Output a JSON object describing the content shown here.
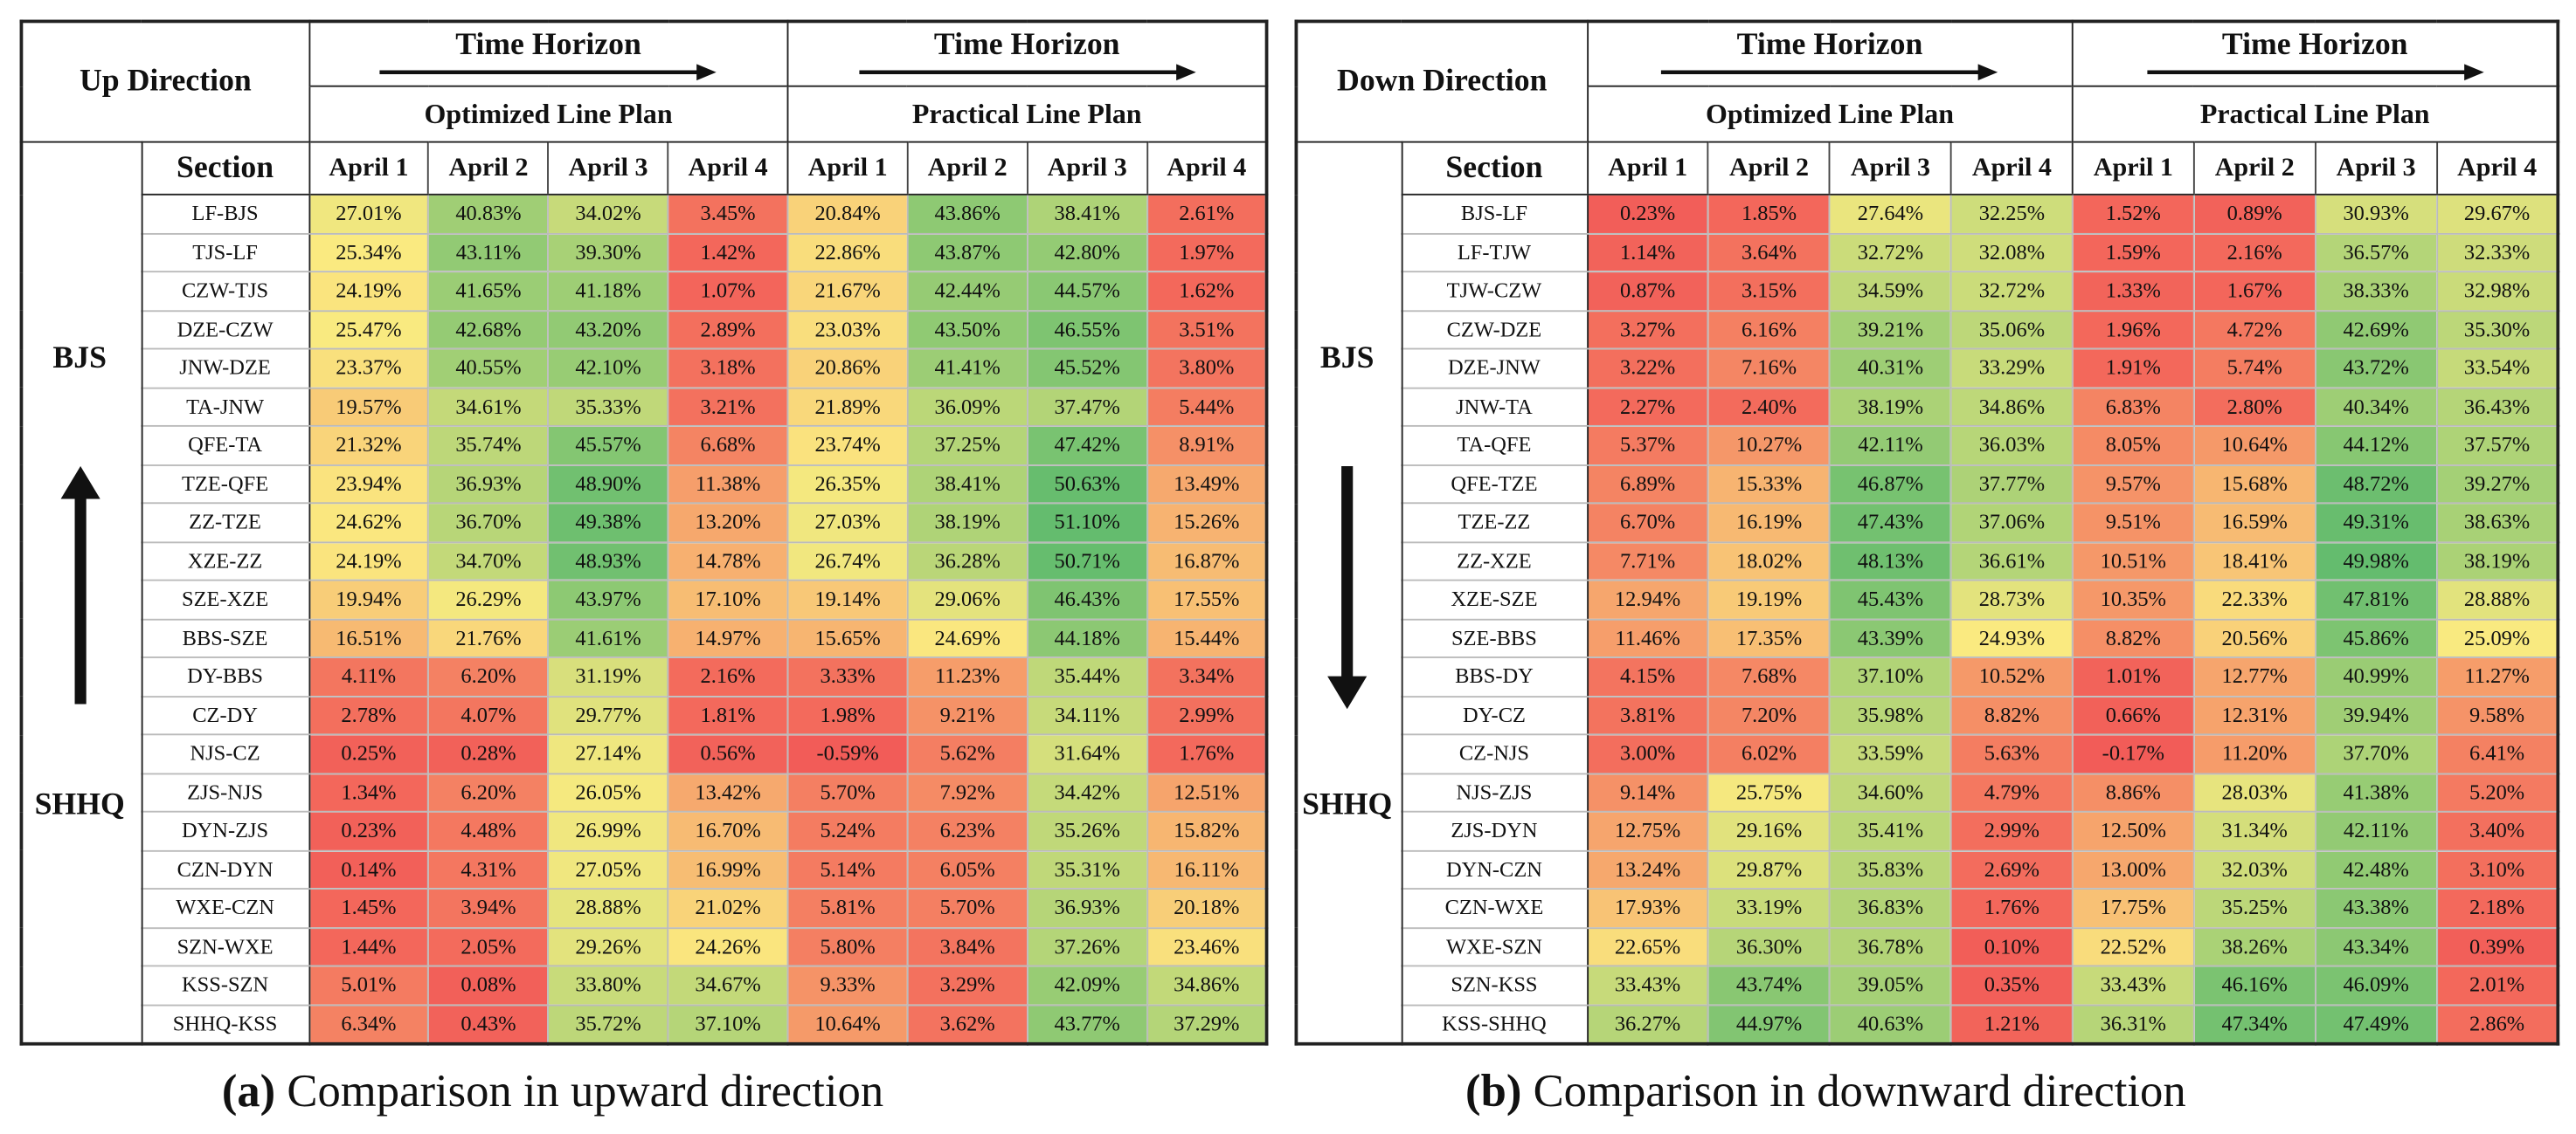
{
  "panels": [
    {
      "direction": "Up Direction",
      "time_horizon": "Time Horizon",
      "plans": [
        "Optimized Line Plan",
        "Practical Line Plan"
      ],
      "section_label": "Section",
      "dates": [
        "April 1",
        "April 2",
        "April 3",
        "April 4"
      ],
      "origin": "BJS",
      "destination": "SHHQ",
      "rows": [
        {
          "section": "LF-BJS",
          "values": [
            "27.01%",
            "40.83%",
            "34.02%",
            "3.45%",
            "20.84%",
            "43.86%",
            "38.41%",
            "2.61%"
          ]
        },
        {
          "section": "TJS-LF",
          "values": [
            "25.34%",
            "43.11%",
            "39.30%",
            "1.42%",
            "22.86%",
            "43.87%",
            "42.80%",
            "1.97%"
          ]
        },
        {
          "section": "CZW-TJS",
          "values": [
            "24.19%",
            "41.65%",
            "41.18%",
            "1.07%",
            "21.67%",
            "42.44%",
            "44.57%",
            "1.62%"
          ]
        },
        {
          "section": "DZE-CZW",
          "values": [
            "25.47%",
            "42.68%",
            "43.20%",
            "2.89%",
            "23.03%",
            "43.50%",
            "46.55%",
            "3.51%"
          ]
        },
        {
          "section": "JNW-DZE",
          "values": [
            "23.37%",
            "40.55%",
            "42.10%",
            "3.18%",
            "20.86%",
            "41.41%",
            "45.52%",
            "3.80%"
          ]
        },
        {
          "section": "TA-JNW",
          "values": [
            "19.57%",
            "34.61%",
            "35.33%",
            "3.21%",
            "21.89%",
            "36.09%",
            "37.47%",
            "5.44%"
          ]
        },
        {
          "section": "QFE-TA",
          "values": [
            "21.32%",
            "35.74%",
            "45.57%",
            "6.68%",
            "23.74%",
            "37.25%",
            "47.42%",
            "8.91%"
          ]
        },
        {
          "section": "TZE-QFE",
          "values": [
            "23.94%",
            "36.93%",
            "48.90%",
            "11.38%",
            "26.35%",
            "38.41%",
            "50.63%",
            "13.49%"
          ]
        },
        {
          "section": "ZZ-TZE",
          "values": [
            "24.62%",
            "36.70%",
            "49.38%",
            "13.20%",
            "27.03%",
            "38.19%",
            "51.10%",
            "15.26%"
          ]
        },
        {
          "section": "XZE-ZZ",
          "values": [
            "24.19%",
            "34.70%",
            "48.93%",
            "14.78%",
            "26.74%",
            "36.28%",
            "50.71%",
            "16.87%"
          ]
        },
        {
          "section": "SZE-XZE",
          "values": [
            "19.94%",
            "26.29%",
            "43.97%",
            "17.10%",
            "19.14%",
            "29.06%",
            "46.43%",
            "17.55%"
          ]
        },
        {
          "section": "BBS-SZE",
          "values": [
            "16.51%",
            "21.76%",
            "41.61%",
            "14.97%",
            "15.65%",
            "24.69%",
            "44.18%",
            "15.44%"
          ]
        },
        {
          "section": "DY-BBS",
          "values": [
            "4.11%",
            "6.20%",
            "31.19%",
            "2.16%",
            "3.33%",
            "11.23%",
            "35.44%",
            "3.34%"
          ]
        },
        {
          "section": "CZ-DY",
          "values": [
            "2.78%",
            "4.07%",
            "29.77%",
            "1.81%",
            "1.98%",
            "9.21%",
            "34.11%",
            "2.99%"
          ]
        },
        {
          "section": "NJS-CZ",
          "values": [
            "0.25%",
            "0.28%",
            "27.14%",
            "0.56%",
            "-0.59%",
            "5.62%",
            "31.64%",
            "1.76%"
          ]
        },
        {
          "section": "ZJS-NJS",
          "values": [
            "1.34%",
            "6.20%",
            "26.05%",
            "13.42%",
            "5.70%",
            "7.92%",
            "34.42%",
            "12.51%"
          ]
        },
        {
          "section": "DYN-ZJS",
          "values": [
            "0.23%",
            "4.48%",
            "26.99%",
            "16.70%",
            "5.24%",
            "6.23%",
            "35.26%",
            "15.82%"
          ]
        },
        {
          "section": "CZN-DYN",
          "values": [
            "0.14%",
            "4.31%",
            "27.05%",
            "16.99%",
            "5.14%",
            "6.05%",
            "35.31%",
            "16.11%"
          ]
        },
        {
          "section": "WXE-CZN",
          "values": [
            "1.45%",
            "3.94%",
            "28.88%",
            "21.02%",
            "5.81%",
            "5.70%",
            "36.93%",
            "20.18%"
          ]
        },
        {
          "section": "SZN-WXE",
          "values": [
            "1.44%",
            "2.05%",
            "29.26%",
            "24.26%",
            "5.80%",
            "3.84%",
            "37.26%",
            "23.46%"
          ]
        },
        {
          "section": "KSS-SZN",
          "values": [
            "5.01%",
            "0.08%",
            "33.80%",
            "34.67%",
            "9.33%",
            "3.29%",
            "42.09%",
            "34.86%"
          ]
        },
        {
          "section": "SHHQ-KSS",
          "values": [
            "6.34%",
            "0.43%",
            "35.72%",
            "37.10%",
            "10.64%",
            "3.62%",
            "43.77%",
            "37.29%"
          ]
        }
      ],
      "caption": {
        "label": "(a)",
        "text": "Comparison in upward direction"
      }
    },
    {
      "direction": "Down Direction",
      "time_horizon": "Time Horizon",
      "plans": [
        "Optimized Line Plan",
        "Practical Line Plan"
      ],
      "section_label": "Section",
      "dates": [
        "April 1",
        "April 2",
        "April 3",
        "April 4"
      ],
      "origin": "BJS",
      "destination": "SHHQ",
      "rows": [
        {
          "section": "BJS-LF",
          "values": [
            "0.23%",
            "1.85%",
            "27.64%",
            "32.25%",
            "1.52%",
            "0.89%",
            "30.93%",
            "29.67%"
          ]
        },
        {
          "section": "LF-TJW",
          "values": [
            "1.14%",
            "3.64%",
            "32.72%",
            "32.08%",
            "1.59%",
            "2.16%",
            "36.57%",
            "32.33%"
          ]
        },
        {
          "section": "TJW-CZW",
          "values": [
            "0.87%",
            "3.15%",
            "34.59%",
            "32.72%",
            "1.33%",
            "1.67%",
            "38.33%",
            "32.98%"
          ]
        },
        {
          "section": "CZW-DZE",
          "values": [
            "3.27%",
            "6.16%",
            "39.21%",
            "35.06%",
            "1.96%",
            "4.72%",
            "42.69%",
            "35.30%"
          ]
        },
        {
          "section": "DZE-JNW",
          "values": [
            "3.22%",
            "7.16%",
            "40.31%",
            "33.29%",
            "1.91%",
            "5.74%",
            "43.72%",
            "33.54%"
          ]
        },
        {
          "section": "JNW-TA",
          "values": [
            "2.27%",
            "2.40%",
            "38.19%",
            "34.86%",
            "6.83%",
            "2.80%",
            "40.34%",
            "36.43%"
          ]
        },
        {
          "section": "TA-QFE",
          "values": [
            "5.37%",
            "10.27%",
            "42.11%",
            "36.03%",
            "8.05%",
            "10.64%",
            "44.12%",
            "37.57%"
          ]
        },
        {
          "section": "QFE-TZE",
          "values": [
            "6.89%",
            "15.33%",
            "46.87%",
            "37.77%",
            "9.57%",
            "15.68%",
            "48.72%",
            "39.27%"
          ]
        },
        {
          "section": "TZE-ZZ",
          "values": [
            "6.70%",
            "16.19%",
            "47.43%",
            "37.06%",
            "9.51%",
            "16.59%",
            "49.31%",
            "38.63%"
          ]
        },
        {
          "section": "ZZ-XZE",
          "values": [
            "7.71%",
            "18.02%",
            "48.13%",
            "36.61%",
            "10.51%",
            "18.41%",
            "49.98%",
            "38.19%"
          ]
        },
        {
          "section": "XZE-SZE",
          "values": [
            "12.94%",
            "19.19%",
            "45.43%",
            "28.73%",
            "10.35%",
            "22.33%",
            "47.81%",
            "28.88%"
          ]
        },
        {
          "section": "SZE-BBS",
          "values": [
            "11.46%",
            "17.35%",
            "43.39%",
            "24.93%",
            "8.82%",
            "20.56%",
            "45.86%",
            "25.09%"
          ]
        },
        {
          "section": "BBS-DY",
          "values": [
            "4.15%",
            "7.68%",
            "37.10%",
            "10.52%",
            "1.01%",
            "12.77%",
            "40.99%",
            "11.27%"
          ]
        },
        {
          "section": "DY-CZ",
          "values": [
            "3.81%",
            "7.20%",
            "35.98%",
            "8.82%",
            "0.66%",
            "12.31%",
            "39.94%",
            "9.58%"
          ]
        },
        {
          "section": "CZ-NJS",
          "values": [
            "3.00%",
            "6.02%",
            "33.59%",
            "5.63%",
            "-0.17%",
            "11.20%",
            "37.70%",
            "6.41%"
          ]
        },
        {
          "section": "NJS-ZJS",
          "values": [
            "9.14%",
            "25.75%",
            "34.60%",
            "4.79%",
            "8.86%",
            "28.03%",
            "41.38%",
            "5.20%"
          ]
        },
        {
          "section": "ZJS-DYN",
          "values": [
            "12.75%",
            "29.16%",
            "35.41%",
            "2.99%",
            "12.50%",
            "31.34%",
            "42.11%",
            "3.40%"
          ]
        },
        {
          "section": "DYN-CZN",
          "values": [
            "13.24%",
            "29.87%",
            "35.83%",
            "2.69%",
            "13.00%",
            "32.03%",
            "42.48%",
            "3.10%"
          ]
        },
        {
          "section": "CZN-WXE",
          "values": [
            "17.93%",
            "33.19%",
            "36.83%",
            "1.76%",
            "17.75%",
            "35.25%",
            "43.38%",
            "2.18%"
          ]
        },
        {
          "section": "WXE-SZN",
          "values": [
            "22.65%",
            "36.30%",
            "36.78%",
            "0.10%",
            "22.52%",
            "38.26%",
            "43.34%",
            "0.39%"
          ]
        },
        {
          "section": "SZN-KSS",
          "values": [
            "33.43%",
            "43.74%",
            "39.05%",
            "0.35%",
            "33.43%",
            "46.16%",
            "46.09%",
            "2.01%"
          ]
        },
        {
          "section": "KSS-SHHQ",
          "values": [
            "36.27%",
            "44.97%",
            "40.63%",
            "1.21%",
            "36.31%",
            "47.34%",
            "47.49%",
            "2.86%"
          ]
        }
      ],
      "caption": {
        "label": "(b)",
        "text": "Comparison in downward direction"
      }
    }
  ]
}
